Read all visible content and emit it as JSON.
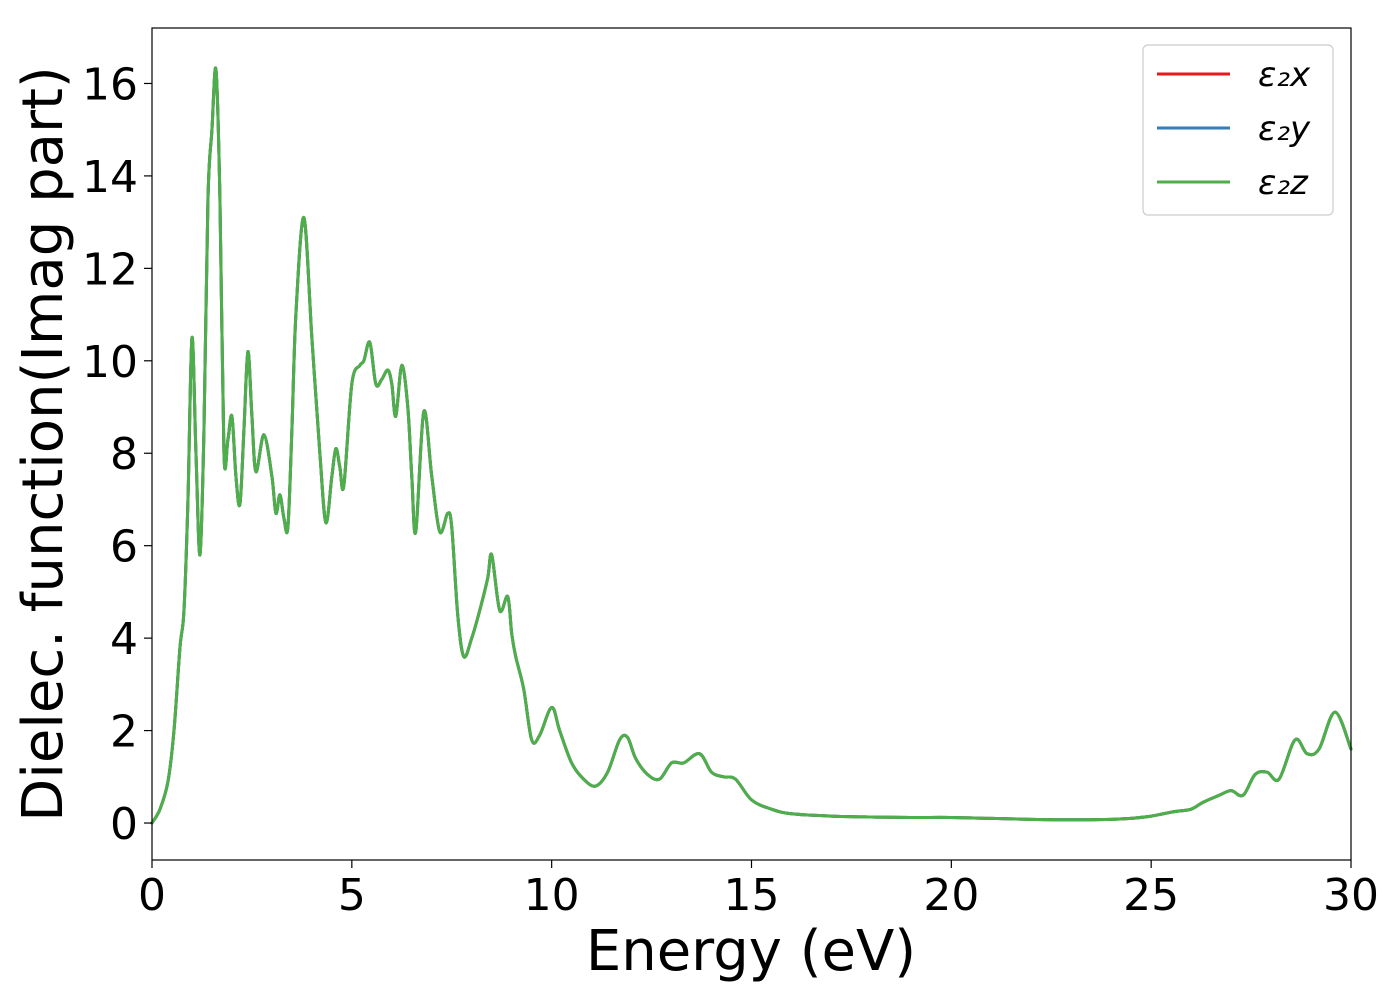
{
  "chart_data": {
    "type": "line",
    "xlabel": "Energy (eV)",
    "ylabel": "Dielec. function(Imag part)",
    "xlim": [
      0,
      30
    ],
    "ylim": [
      -0.8,
      17.2
    ],
    "xticks": [
      0,
      5,
      10,
      15,
      20,
      25,
      30
    ],
    "yticks": [
      0,
      2,
      4,
      6,
      8,
      10,
      12,
      14,
      16
    ],
    "grid": false,
    "legend_position": "top-right",
    "x": [
      0,
      0.2,
      0.4,
      0.55,
      0.7,
      0.8,
      0.9,
      1.0,
      1.1,
      1.2,
      1.3,
      1.4,
      1.5,
      1.6,
      1.7,
      1.8,
      1.9,
      2.0,
      2.1,
      2.2,
      2.3,
      2.4,
      2.5,
      2.6,
      2.8,
      3.0,
      3.1,
      3.2,
      3.3,
      3.4,
      3.5,
      3.6,
      3.8,
      4.0,
      4.2,
      4.35,
      4.5,
      4.6,
      4.7,
      4.8,
      5.0,
      5.2,
      5.3,
      5.45,
      5.6,
      5.75,
      5.9,
      6.0,
      6.1,
      6.25,
      6.4,
      6.5,
      6.6,
      6.8,
      7.0,
      7.2,
      7.4,
      7.5,
      7.65,
      7.8,
      8.0,
      8.2,
      8.4,
      8.5,
      8.7,
      8.9,
      9.0,
      9.1,
      9.3,
      9.5,
      9.7,
      10.0,
      10.2,
      10.5,
      10.8,
      11.1,
      11.4,
      11.7,
      11.9,
      12.1,
      12.4,
      12.7,
      13.0,
      13.3,
      13.7,
      14.0,
      14.3,
      14.6,
      15.0,
      15.5,
      16.0,
      17.0,
      18.0,
      19.0,
      20.0,
      21.0,
      22.0,
      23.0,
      24.0,
      24.5,
      25.0,
      25.3,
      25.6,
      26.0,
      26.3,
      26.7,
      27.0,
      27.3,
      27.6,
      27.9,
      28.2,
      28.6,
      28.9,
      29.2,
      29.6,
      30.0
    ],
    "series": [
      {
        "name": "ε₂x",
        "color": "#e41a1c",
        "values": [
          0,
          0.3,
          0.9,
          2.0,
          3.8,
          4.6,
          7.0,
          10.5,
          8.0,
          5.8,
          8.5,
          13.5,
          15.0,
          16.3,
          13.5,
          8.0,
          8.3,
          8.8,
          7.5,
          6.9,
          8.5,
          10.2,
          8.8,
          7.6,
          8.4,
          7.5,
          6.7,
          7.1,
          6.6,
          6.4,
          8.5,
          11.0,
          13.1,
          10.5,
          8.0,
          6.5,
          7.5,
          8.1,
          7.7,
          7.3,
          9.5,
          9.9,
          10.0,
          10.4,
          9.5,
          9.6,
          9.8,
          9.5,
          8.8,
          9.9,
          9.0,
          7.5,
          6.3,
          8.9,
          7.5,
          6.3,
          6.7,
          6.4,
          4.5,
          3.6,
          4.0,
          4.6,
          5.3,
          5.8,
          4.6,
          4.9,
          4.1,
          3.6,
          2.9,
          1.8,
          1.9,
          2.5,
          2.0,
          1.3,
          0.95,
          0.8,
          1.1,
          1.8,
          1.85,
          1.4,
          1.05,
          0.95,
          1.3,
          1.3,
          1.5,
          1.1,
          1.0,
          0.95,
          0.5,
          0.3,
          0.2,
          0.15,
          0.13,
          0.12,
          0.12,
          0.1,
          0.08,
          0.07,
          0.08,
          0.1,
          0.15,
          0.2,
          0.25,
          0.3,
          0.45,
          0.6,
          0.7,
          0.6,
          1.05,
          1.1,
          0.95,
          1.8,
          1.5,
          1.6,
          2.4,
          1.6
        ]
      },
      {
        "name": "ε₂y",
        "color": "#377eb8",
        "values": [
          0,
          0.3,
          0.9,
          2.0,
          3.8,
          4.6,
          7.0,
          10.5,
          8.0,
          5.8,
          8.5,
          13.5,
          15.0,
          16.3,
          13.5,
          8.0,
          8.3,
          8.8,
          7.5,
          6.9,
          8.5,
          10.2,
          8.8,
          7.6,
          8.4,
          7.5,
          6.7,
          7.1,
          6.6,
          6.4,
          8.5,
          11.0,
          13.1,
          10.5,
          8.0,
          6.5,
          7.5,
          8.1,
          7.7,
          7.3,
          9.5,
          9.9,
          10.0,
          10.4,
          9.5,
          9.6,
          9.8,
          9.5,
          8.8,
          9.9,
          9.0,
          7.5,
          6.3,
          8.9,
          7.5,
          6.3,
          6.7,
          6.4,
          4.5,
          3.6,
          4.0,
          4.6,
          5.3,
          5.8,
          4.6,
          4.9,
          4.1,
          3.6,
          2.9,
          1.8,
          1.9,
          2.5,
          2.0,
          1.3,
          0.95,
          0.8,
          1.1,
          1.8,
          1.85,
          1.4,
          1.05,
          0.95,
          1.3,
          1.3,
          1.5,
          1.1,
          1.0,
          0.95,
          0.5,
          0.3,
          0.2,
          0.15,
          0.13,
          0.12,
          0.12,
          0.1,
          0.08,
          0.07,
          0.08,
          0.1,
          0.15,
          0.2,
          0.25,
          0.3,
          0.45,
          0.6,
          0.7,
          0.6,
          1.05,
          1.1,
          0.95,
          1.8,
          1.5,
          1.6,
          2.4,
          1.6
        ]
      },
      {
        "name": "ε₂z",
        "color": "#4daf4a",
        "values": [
          0,
          0.3,
          0.9,
          2.0,
          3.8,
          4.6,
          7.0,
          10.5,
          8.0,
          5.8,
          8.5,
          13.5,
          15.0,
          16.3,
          13.5,
          8.0,
          8.3,
          8.8,
          7.5,
          6.9,
          8.5,
          10.2,
          8.8,
          7.6,
          8.4,
          7.5,
          6.7,
          7.1,
          6.6,
          6.4,
          8.5,
          11.0,
          13.1,
          10.5,
          8.0,
          6.5,
          7.5,
          8.1,
          7.7,
          7.3,
          9.5,
          9.9,
          10.0,
          10.4,
          9.5,
          9.6,
          9.8,
          9.5,
          8.8,
          9.9,
          9.0,
          7.5,
          6.3,
          8.9,
          7.5,
          6.3,
          6.7,
          6.4,
          4.5,
          3.6,
          4.0,
          4.6,
          5.3,
          5.8,
          4.6,
          4.9,
          4.1,
          3.6,
          2.9,
          1.8,
          1.9,
          2.5,
          2.0,
          1.3,
          0.95,
          0.8,
          1.1,
          1.8,
          1.85,
          1.4,
          1.05,
          0.95,
          1.3,
          1.3,
          1.5,
          1.1,
          1.0,
          0.95,
          0.5,
          0.3,
          0.2,
          0.15,
          0.13,
          0.12,
          0.12,
          0.1,
          0.08,
          0.07,
          0.08,
          0.1,
          0.15,
          0.2,
          0.25,
          0.3,
          0.45,
          0.6,
          0.7,
          0.6,
          1.05,
          1.1,
          0.95,
          1.8,
          1.5,
          1.6,
          2.4,
          1.6
        ]
      }
    ]
  }
}
